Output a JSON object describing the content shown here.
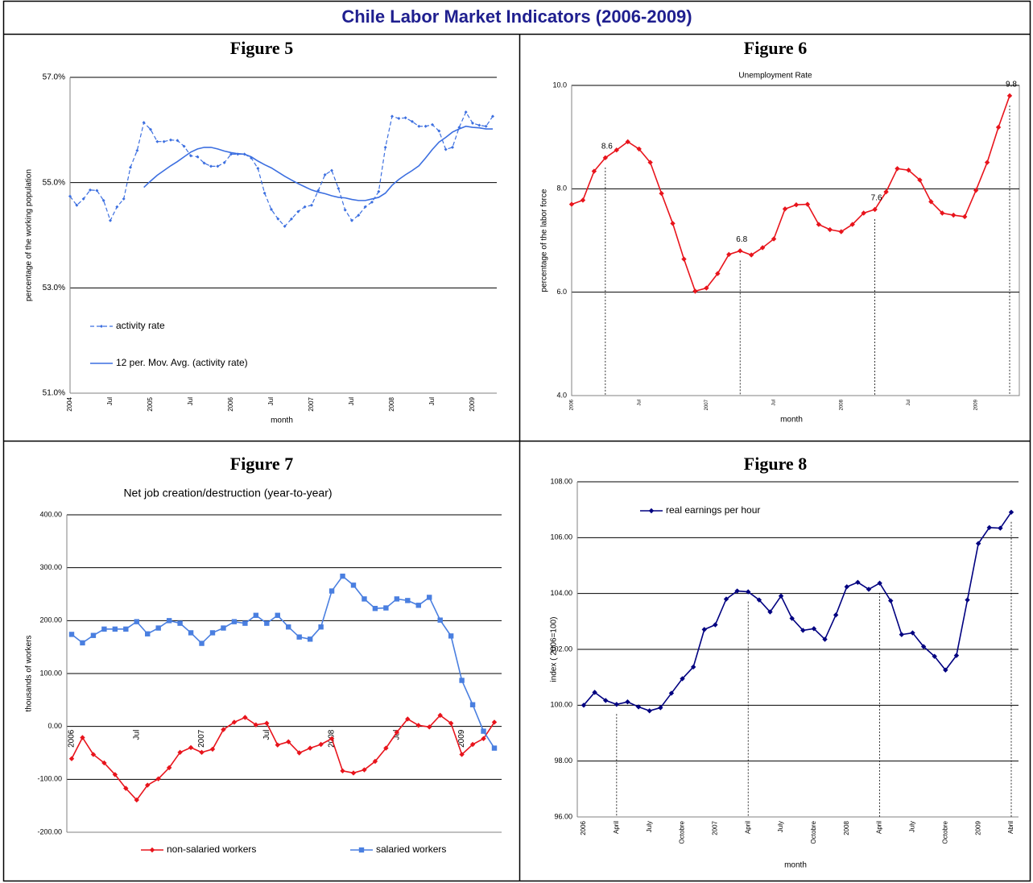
{
  "title": "Chile Labor Market Indicators (2006-2009)",
  "chart_data": [
    {
      "type": "line",
      "label": "Figure 5",
      "xlabel": "month",
      "ylabel": "percentage of the working population",
      "categories": [
        "2004",
        null,
        null,
        null,
        null,
        null,
        "Jul",
        null,
        null,
        null,
        null,
        null,
        "2005",
        null,
        null,
        null,
        null,
        null,
        "Jul",
        null,
        null,
        null,
        null,
        null,
        "2006",
        null,
        null,
        null,
        null,
        null,
        "Jul",
        null,
        null,
        null,
        null,
        null,
        "2007",
        null,
        null,
        null,
        null,
        null,
        "Jul",
        null,
        null,
        null,
        null,
        null,
        "2008",
        null,
        null,
        null,
        null,
        null,
        "Jul",
        null,
        null,
        null,
        null,
        null,
        "2009",
        null,
        null,
        null
      ],
      "series": [
        {
          "name": "activity rate",
          "color": "#3c6fe0",
          "marker": "diamond",
          "dash": true,
          "values": [
            54.74,
            54.57,
            54.69,
            54.86,
            54.85,
            54.66,
            54.28,
            54.54,
            54.69,
            55.29,
            55.61,
            56.14,
            56.01,
            55.78,
            55.78,
            55.81,
            55.8,
            55.69,
            55.51,
            55.49,
            55.37,
            55.31,
            55.31,
            55.38,
            55.54,
            55.54,
            55.54,
            55.47,
            55.27,
            54.8,
            54.49,
            54.31,
            54.17,
            54.31,
            54.45,
            54.54,
            54.57,
            54.85,
            55.15,
            55.23,
            54.89,
            54.48,
            54.28,
            54.38,
            54.54,
            54.63,
            54.83,
            55.67,
            56.26,
            56.22,
            56.23,
            56.16,
            56.07,
            56.07,
            56.1,
            55.98,
            55.63,
            55.67,
            56.05,
            56.34,
            56.13,
            56.09,
            56.07,
            56.26
          ]
        },
        {
          "name": "12 per. Mov. Avg. (activity rate)",
          "color": "#3c6fe0",
          "marker": "none",
          "dash": false,
          "values": [
            null,
            null,
            null,
            null,
            null,
            null,
            null,
            null,
            null,
            null,
            null,
            54.91,
            55.03,
            55.14,
            55.23,
            55.32,
            55.4,
            55.49,
            55.58,
            55.64,
            55.67,
            55.67,
            55.64,
            55.6,
            55.57,
            55.55,
            55.54,
            55.49,
            55.41,
            55.34,
            55.28,
            55.2,
            55.12,
            55.05,
            54.98,
            54.92,
            54.86,
            54.82,
            54.79,
            54.75,
            54.72,
            54.71,
            54.68,
            54.66,
            54.66,
            54.69,
            54.72,
            54.8,
            54.95,
            55.06,
            55.15,
            55.23,
            55.32,
            55.47,
            55.63,
            55.77,
            55.86,
            55.96,
            56.02,
            56.07,
            56.05,
            56.04,
            56.02,
            56.02
          ]
        }
      ],
      "ylim": [
        51,
        57
      ],
      "yticks": [
        {
          "value": 51,
          "label": "51.0%"
        },
        {
          "value": 53,
          "label": "53.0%"
        },
        {
          "value": 55,
          "label": "55.0%"
        },
        {
          "value": 57,
          "label": "57.0%"
        }
      ],
      "grid": true,
      "legend": "inside-left"
    },
    {
      "type": "line",
      "label": "Figure 6",
      "title": "Unemployment Rate",
      "xlabel": "month",
      "ylabel": "percentage of the labor force",
      "categories": [
        "2006",
        null,
        null,
        null,
        null,
        null,
        "Jul",
        null,
        null,
        null,
        null,
        null,
        "2007",
        null,
        null,
        null,
        null,
        null,
        "Jul",
        null,
        null,
        null,
        null,
        null,
        "2008",
        null,
        null,
        null,
        null,
        null,
        "Jul",
        null,
        null,
        null,
        null,
        null,
        "2009",
        null,
        null,
        null
      ],
      "series": [
        {
          "color": "#e8141c",
          "marker": "diamond",
          "dash": false,
          "values": [
            7.7,
            7.78,
            8.34,
            8.6,
            8.75,
            8.91,
            8.77,
            8.51,
            7.91,
            7.33,
            6.64,
            6.02,
            6.08,
            6.36,
            6.73,
            6.8,
            6.72,
            6.86,
            7.03,
            7.61,
            7.69,
            7.7,
            7.31,
            7.21,
            7.17,
            7.31,
            7.53,
            7.6,
            7.94,
            8.39,
            8.36,
            8.17,
            7.75,
            7.53,
            7.49,
            7.46,
            7.97,
            8.51,
            9.19,
            9.8
          ]
        }
      ],
      "ylim": [
        4,
        10
      ],
      "yticks": [
        {
          "value": 4,
          "label": "4.0"
        },
        {
          "value": 6,
          "label": "6.0"
        },
        {
          "value": 8,
          "label": "8.0"
        },
        {
          "value": 10,
          "label": "10.0"
        }
      ],
      "grid": true
    },
    {
      "type": "line",
      "label": "Figure 7",
      "title": "Net job creation/destruction (year-to-year)",
      "ylabel": "thousands of workers",
      "categories": [
        "2006",
        null,
        null,
        null,
        null,
        null,
        "Jul",
        null,
        null,
        null,
        null,
        null,
        "2007",
        null,
        null,
        null,
        null,
        null,
        "Jul",
        null,
        null,
        null,
        null,
        null,
        "2008",
        null,
        null,
        null,
        null,
        null,
        "Jul",
        null,
        null,
        null,
        null,
        null,
        "2009",
        null,
        null,
        null
      ],
      "series": [
        {
          "name": "non-salaried workers",
          "color": "#e8141c",
          "marker": "diamond",
          "dash": false,
          "values": [
            -61,
            -21,
            -53,
            -69,
            -91,
            -117,
            -139,
            -111,
            -99,
            -78,
            -49,
            -40,
            -49,
            -43,
            -6,
            8,
            17,
            3,
            6,
            -35,
            -29,
            -50,
            -41,
            -34,
            -23,
            -84,
            -88,
            -82,
            -66,
            -41,
            -11,
            14,
            2,
            -1,
            21,
            6,
            -53,
            -34,
            -23,
            8
          ]
        },
        {
          "name": "salaried workers",
          "color": "#4a7fe0",
          "marker": "square",
          "dash": false,
          "values": [
            174,
            158,
            172,
            184,
            184,
            184,
            198,
            175,
            186,
            200,
            195,
            177,
            157,
            177,
            186,
            198,
            195,
            210,
            195,
            210,
            188,
            169,
            165,
            188,
            256,
            284,
            267,
            241,
            223,
            224,
            241,
            238,
            229,
            244,
            201,
            171,
            87,
            41,
            -9,
            -41
          ]
        }
      ],
      "ylim": [
        -200,
        400
      ],
      "yticks": [
        {
          "value": -200,
          "label": "-200.00"
        },
        {
          "value": -100,
          "label": "-100.00"
        },
        {
          "value": 0,
          "label": "0.00"
        },
        {
          "value": 100,
          "label": "100.00"
        },
        {
          "value": 200,
          "label": "200.00"
        },
        {
          "value": 300,
          "label": "300.00"
        },
        {
          "value": 400,
          "label": "400.00"
        }
      ],
      "grid": true,
      "legend": "bottom"
    },
    {
      "type": "line",
      "label": "Figure 8",
      "xlabel": "month",
      "ylabel": "index ( 2006=100)",
      "categories": [
        "2006",
        null,
        null,
        "April",
        null,
        null,
        "July",
        null,
        null,
        "Octobre",
        null,
        null,
        "2007",
        null,
        null,
        "April",
        null,
        null,
        "July",
        null,
        null,
        "Octobre",
        null,
        null,
        "2008",
        null,
        null,
        "April",
        null,
        null,
        "July",
        null,
        null,
        "Octobre",
        null,
        null,
        "2009",
        null,
        null,
        "Abril"
      ],
      "series": [
        {
          "name": "real earnings per hour",
          "color": "#000080",
          "marker": "diamond",
          "dash": false,
          "values": [
            100.0,
            100.46,
            100.17,
            100.03,
            100.12,
            99.94,
            99.8,
            99.91,
            100.43,
            100.95,
            101.37,
            102.71,
            102.88,
            103.8,
            104.09,
            104.06,
            103.77,
            103.34,
            103.91,
            103.11,
            102.68,
            102.74,
            102.36,
            103.23,
            104.24,
            104.4,
            104.15,
            104.37,
            103.74,
            102.53,
            102.59,
            102.1,
            101.75,
            101.26,
            101.78,
            103.77,
            105.79,
            106.36,
            106.34,
            106.91
          ]
        }
      ],
      "ylim": [
        96,
        108
      ],
      "yticks": [
        {
          "value": 96,
          "label": "96.00"
        },
        {
          "value": 98,
          "label": "98.00"
        },
        {
          "value": 100,
          "label": "100.00"
        },
        {
          "value": 102,
          "label": "102.00"
        },
        {
          "value": 104,
          "label": "104.00"
        },
        {
          "value": 106,
          "label": "106.00"
        },
        {
          "value": 108,
          "label": "108.00"
        }
      ],
      "grid": true,
      "legend": "top-left"
    }
  ]
}
